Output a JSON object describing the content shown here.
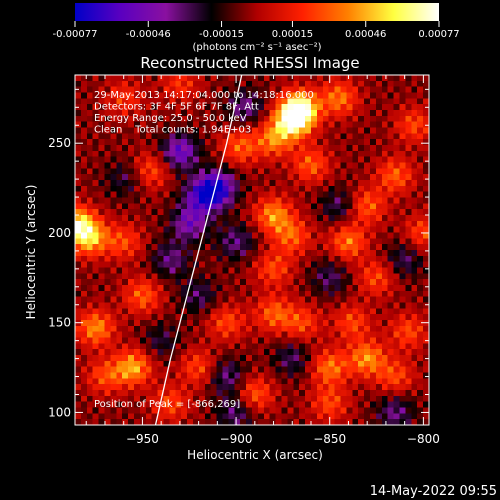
{
  "chart_data": {
    "type": "heatmap",
    "title": "Reconstructed RHESSI Image",
    "xlabel": "Heliocentric X (arcsec)",
    "ylabel": "Heliocentric Y (arcsec)",
    "xlim": [
      -986,
      -797
    ],
    "ylim": [
      93,
      288
    ],
    "x_ticks": [
      -950,
      -900,
      -850,
      -800
    ],
    "y_ticks": [
      100,
      150,
      200,
      250
    ],
    "x_tick_labels": [
      "−950",
      "−900",
      "−850",
      "−800"
    ],
    "y_tick_labels": [
      "100",
      "150",
      "200",
      "250"
    ],
    "colorbar": {
      "ticks": [
        -0.00077,
        -0.00046,
        -0.00015,
        0.00015,
        0.00046,
        0.00077
      ],
      "tick_labels": [
        "-0.00077",
        "-0.00046",
        "-0.00015",
        "0.00015",
        "0.00046",
        "0.00077"
      ],
      "unit_label": "(photons cm⁻² s⁻¹ asec⁻²)",
      "range": [
        -0.00077,
        0.00077
      ],
      "colors": [
        "#0000c8",
        "#5a00c0",
        "#8a10a0",
        "#000000",
        "#b00000",
        "#ff2000",
        "#ff8000",
        "#ffff40",
        "#ffffff"
      ]
    },
    "annotations": [
      "29-May-2013 14:17:04.000 to 14:18:16.000",
      "Detectors: 3F 4F 5F 6F 7F 8F, Att",
      "Energy Range: 25.0 - 50.0 keV",
      "Clean    Total counts: 1.94E+03"
    ],
    "peak_label": "Position of Peak = [-866,269]",
    "peak": [
      -866,
      269
    ],
    "limb_curve": [
      [
        -943,
        93
      ],
      [
        -935,
        130
      ],
      [
        -925,
        170
      ],
      [
        -915,
        210
      ],
      [
        -905,
        250
      ],
      [
        -897,
        288
      ]
    ],
    "hotspots": [
      {
        "x": -866,
        "y": 269,
        "v": 0.00077
      },
      {
        "x": -870,
        "y": 262,
        "v": 0.0006
      },
      {
        "x": -985,
        "y": 205,
        "v": 0.0006
      },
      {
        "x": -978,
        "y": 197,
        "v": 0.0005
      },
      {
        "x": -955,
        "y": 125,
        "v": 0.0005
      },
      {
        "x": -975,
        "y": 147,
        "v": 0.00045
      },
      {
        "x": -845,
        "y": 275,
        "v": 0.0004
      },
      {
        "x": -880,
        "y": 252,
        "v": 0.0004
      },
      {
        "x": -898,
        "y": 248,
        "v": 0.00035
      },
      {
        "x": -860,
        "y": 238,
        "v": 0.00035
      },
      {
        "x": -880,
        "y": 210,
        "v": 0.00045
      },
      {
        "x": -870,
        "y": 198,
        "v": 0.00035
      },
      {
        "x": -815,
        "y": 232,
        "v": 0.00035
      },
      {
        "x": -830,
        "y": 215,
        "v": 0.00035
      },
      {
        "x": -805,
        "y": 260,
        "v": 0.0003
      },
      {
        "x": -840,
        "y": 195,
        "v": 0.0004
      },
      {
        "x": -825,
        "y": 175,
        "v": 0.0003
      },
      {
        "x": -950,
        "y": 165,
        "v": 0.00035
      },
      {
        "x": -960,
        "y": 195,
        "v": 0.0003
      },
      {
        "x": -945,
        "y": 235,
        "v": 0.0003
      },
      {
        "x": -905,
        "y": 150,
        "v": 0.0003
      },
      {
        "x": -880,
        "y": 155,
        "v": 0.00035
      },
      {
        "x": -865,
        "y": 150,
        "v": 0.0003
      },
      {
        "x": -838,
        "y": 150,
        "v": 0.0003
      },
      {
        "x": -850,
        "y": 125,
        "v": 0.0004
      },
      {
        "x": -830,
        "y": 130,
        "v": 0.00045
      },
      {
        "x": -815,
        "y": 120,
        "v": 0.0003
      },
      {
        "x": -808,
        "y": 145,
        "v": 0.0003
      },
      {
        "x": -890,
        "y": 110,
        "v": 0.00035
      },
      {
        "x": -920,
        "y": 125,
        "v": 0.0003
      },
      {
        "x": -935,
        "y": 105,
        "v": 0.0003
      },
      {
        "x": -880,
        "y": 180,
        "v": 0.0003
      },
      {
        "x": -850,
        "y": 105,
        "v": 0.0003
      },
      {
        "x": -800,
        "y": 200,
        "v": 0.0003
      },
      {
        "x": -970,
        "y": 120,
        "v": 0.0003
      },
      {
        "x": -960,
        "y": 275,
        "v": 0.00025
      },
      {
        "x": -930,
        "y": 283,
        "v": 0.00025
      },
      {
        "x": -905,
        "y": 120,
        "v": -0.0003
      },
      {
        "x": -930,
        "y": 245,
        "v": -0.0005
      },
      {
        "x": -918,
        "y": 220,
        "v": -0.0005
      },
      {
        "x": -910,
        "y": 225,
        "v": -0.0006
      },
      {
        "x": -925,
        "y": 205,
        "v": -0.0004
      },
      {
        "x": -900,
        "y": 195,
        "v": -0.0003
      },
      {
        "x": -935,
        "y": 185,
        "v": -0.0003
      },
      {
        "x": -920,
        "y": 165,
        "v": -0.00025
      },
      {
        "x": -895,
        "y": 270,
        "v": -0.0003
      },
      {
        "x": -850,
        "y": 175,
        "v": -0.00025
      },
      {
        "x": -845,
        "y": 215,
        "v": -0.00025
      },
      {
        "x": -810,
        "y": 185,
        "v": -0.00025
      },
      {
        "x": -815,
        "y": 100,
        "v": -0.0003
      },
      {
        "x": -870,
        "y": 130,
        "v": -0.00025
      },
      {
        "x": -960,
        "y": 230,
        "v": -0.0002
      },
      {
        "x": -940,
        "y": 140,
        "v": -0.0002
      },
      {
        "x": -900,
        "y": 100,
        "v": -0.0003
      }
    ]
  },
  "footer": {
    "date": "14-May-2022 09:55"
  }
}
